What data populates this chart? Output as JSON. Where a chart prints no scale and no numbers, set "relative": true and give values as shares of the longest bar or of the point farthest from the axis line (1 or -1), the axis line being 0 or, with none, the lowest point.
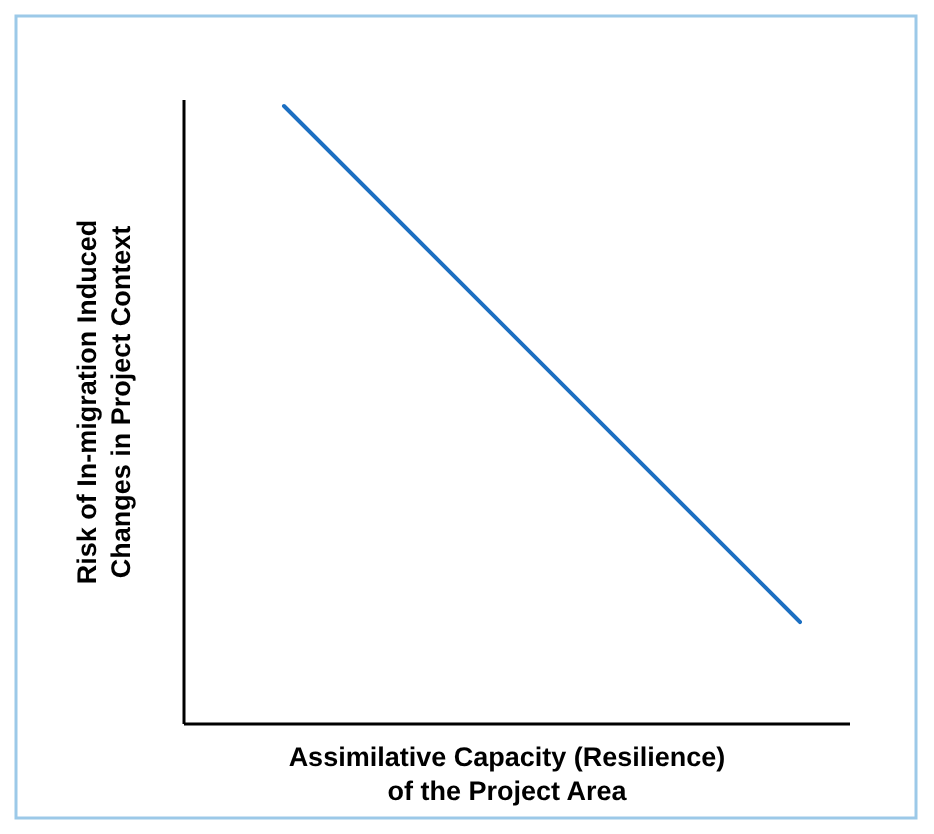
{
  "chart_data": {
    "type": "line",
    "relative": true,
    "categories": [
      null,
      null
    ],
    "xlabel": "Assimilative Capacity (Resilience)\nof the Project Area",
    "ylabel": "Risk of In-migration Induced\nChanges in Project Context",
    "series": [
      {
        "color": "#1c6fc2",
        "values": [
          1,
          0.165
        ]
      }
    ],
    "line_style": "solid"
  }
}
